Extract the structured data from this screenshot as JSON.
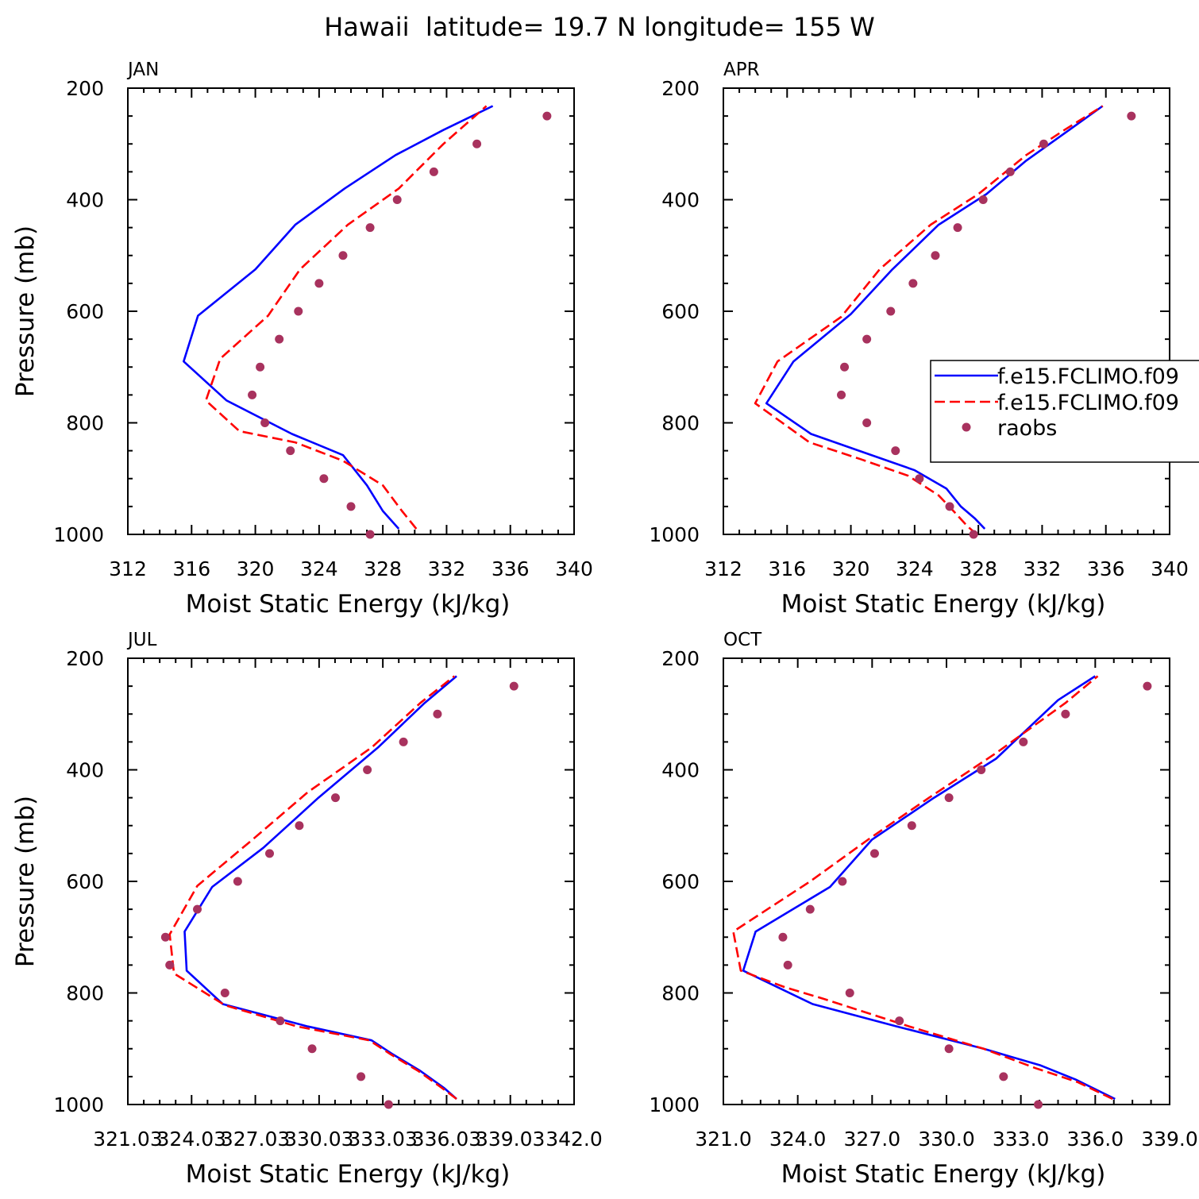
{
  "title": "Hawaii  latitude= 19.7 N longitude= 155 W",
  "legend": {
    "entries": [
      "f.e15.FCLIMO.f09",
      "f.e15.FCLIMO.f09",
      "raobs"
    ],
    "placement": "right, in APR panel"
  },
  "colors": {
    "series1": "#0000ff",
    "series2": "#ff0000",
    "obs": "#a8325e"
  },
  "chart_data": [
    {
      "type": "line",
      "panel_label": "JAN",
      "xlabel": "Moist Static Energy (kJ/kg)",
      "ylabel": "Pressure (mb)",
      "xlim": [
        312,
        340
      ],
      "ylim": [
        1000,
        200
      ],
      "xticks": [
        312,
        316,
        320,
        324,
        328,
        332,
        336,
        340
      ],
      "xtick_labels": [
        "312",
        "316",
        "320",
        "324",
        "328",
        "332",
        "336",
        "340"
      ],
      "yticks": [
        200,
        400,
        600,
        800,
        1000
      ],
      "ytick_labels": [
        "200",
        "400",
        "600",
        "800",
        "1000"
      ],
      "series": [
        {
          "name": "f.e15.FCLIMO.f09",
          "style": "solid",
          "x": [
            329.0,
            328.0,
            327.0,
            325.5,
            322.3,
            318.2,
            315.5,
            316.4,
            320.0,
            322.5,
            325.6,
            328.8,
            331.8,
            334.9
          ],
          "y": [
            990,
            958,
            912,
            858,
            820,
            760,
            690,
            608,
            525,
            445,
            380,
            320,
            275,
            232
          ]
        },
        {
          "name": "f.e15.FCLIMO.f09",
          "style": "dashed",
          "x": [
            330.1,
            329.2,
            328.0,
            325.5,
            322.5,
            319.0,
            316.9,
            317.8,
            320.8,
            322.8,
            325.8,
            329.0,
            331.8,
            334.5
          ],
          "y": [
            990,
            958,
            912,
            868,
            835,
            815,
            760,
            685,
            608,
            525,
            445,
            380,
            300,
            232
          ]
        },
        {
          "name": "raobs",
          "style": "markers",
          "x": [
            327.2,
            326.0,
            324.3,
            322.2,
            320.6,
            319.8,
            320.3,
            321.5,
            322.7,
            324.0,
            325.5,
            327.2,
            328.9,
            331.2,
            333.9,
            338.3
          ],
          "y": [
            1000,
            950,
            900,
            850,
            800,
            750,
            700,
            650,
            600,
            550,
            500,
            450,
            400,
            350,
            300,
            250
          ]
        }
      ]
    },
    {
      "type": "line",
      "panel_label": "APR",
      "xlabel": "Moist Static Energy (kJ/kg)",
      "ylabel": "Pressure (mb)",
      "xlim": [
        312,
        340
      ],
      "ylim": [
        1000,
        200
      ],
      "xticks": [
        312,
        316,
        320,
        324,
        328,
        332,
        336,
        340
      ],
      "xtick_labels": [
        "312",
        "316",
        "320",
        "324",
        "328",
        "332",
        "336",
        "340"
      ],
      "yticks": [
        200,
        400,
        600,
        800,
        1000
      ],
      "ytick_labels": [
        "200",
        "400",
        "600",
        "800",
        "1000"
      ],
      "series": [
        {
          "name": "f.e15.FCLIMO.f09",
          "style": "solid",
          "x": [
            328.4,
            327.8,
            326.9,
            326.0,
            324.0,
            321.5,
            317.5,
            314.7,
            316.4,
            320.0,
            322.6,
            325.5,
            328.5,
            331.0,
            333.7,
            335.8
          ],
          "y": [
            990,
            972,
            950,
            918,
            885,
            860,
            820,
            765,
            690,
            605,
            525,
            445,
            390,
            330,
            275,
            232
          ]
        },
        {
          "name": "f.e15.FCLIMO.f09",
          "style": "dashed",
          "x": [
            327.9,
            327.3,
            326.5,
            325.5,
            323.6,
            320.6,
            317.4,
            314.0,
            315.4,
            319.4,
            321.8,
            325.0,
            328.0,
            331.0,
            333.4,
            335.8
          ],
          "y": [
            1000,
            985,
            960,
            930,
            895,
            865,
            835,
            765,
            690,
            610,
            525,
            445,
            390,
            320,
            275,
            232
          ]
        },
        {
          "name": "raobs",
          "style": "markers",
          "x": [
            327.7,
            326.2,
            324.3,
            322.8,
            321.0,
            319.4,
            319.6,
            321.0,
            322.5,
            323.9,
            325.3,
            326.7,
            328.3,
            330.0,
            332.1,
            337.6
          ],
          "y": [
            1000,
            950,
            900,
            850,
            800,
            750,
            700,
            650,
            600,
            550,
            500,
            450,
            400,
            350,
            300,
            250
          ]
        }
      ]
    },
    {
      "type": "line",
      "panel_label": "JUL",
      "xlabel": "Moist Static Energy (kJ/kg)",
      "ylabel": "Pressure (mb)",
      "xlim": [
        321.03,
        342.03
      ],
      "ylim": [
        1000,
        200
      ],
      "xticks": [
        321.03,
        324.03,
        327.03,
        330.03,
        333.03,
        336.03,
        339.03,
        342.03
      ],
      "xtick_labels": [
        "321.03",
        "324.03",
        "327.03",
        "330.03",
        "333.03",
        "336.03",
        "339.03",
        "342.0"
      ],
      "yticks": [
        200,
        400,
        600,
        800,
        1000
      ],
      "ytick_labels": [
        "200",
        "400",
        "600",
        "800",
        "1000"
      ],
      "series": [
        {
          "name": "f.e15.FCLIMO.f09",
          "style": "solid",
          "x": [
            336.5,
            335.9,
            334.8,
            333.5,
            332.5,
            329.5,
            325.5,
            323.8,
            323.7,
            325.0,
            327.4,
            330.0,
            332.8,
            335.0,
            336.5
          ],
          "y": [
            990,
            970,
            940,
            910,
            885,
            860,
            820,
            760,
            690,
            610,
            540,
            450,
            360,
            280,
            232
          ]
        },
        {
          "name": "f.e15.FCLIMO.f09",
          "style": "dashed",
          "x": [
            336.5,
            335.8,
            334.7,
            333.4,
            332.4,
            329.0,
            325.6,
            323.2,
            323.0,
            324.3,
            326.9,
            329.5,
            332.5,
            334.8,
            336.4
          ],
          "y": [
            990,
            970,
            940,
            910,
            885,
            860,
            822,
            765,
            695,
            608,
            525,
            440,
            360,
            280,
            232
          ]
        },
        {
          "name": "raobs",
          "style": "markers",
          "x": [
            333.3,
            332.0,
            329.7,
            328.2,
            325.6,
            323.0,
            322.8,
            324.3,
            326.2,
            327.7,
            329.1,
            330.8,
            332.3,
            334.0,
            335.6,
            339.2
          ],
          "y": [
            1000,
            950,
            900,
            850,
            800,
            750,
            700,
            650,
            600,
            550,
            500,
            450,
            400,
            350,
            300,
            250
          ]
        }
      ]
    },
    {
      "type": "line",
      "panel_label": "OCT",
      "xlabel": "Moist Static Energy (kJ/kg)",
      "ylabel": "Pressure (mb)",
      "xlim": [
        321.0,
        339.0
      ],
      "ylim": [
        1000,
        200
      ],
      "xticks": [
        321.0,
        324.0,
        327.0,
        330.0,
        333.0,
        336.0,
        339.0
      ],
      "xtick_labels": [
        "321.0",
        "324.0",
        "327.0",
        "330.0",
        "333.0",
        "336.0",
        "339.0"
      ],
      "yticks": [
        200,
        400,
        600,
        800,
        1000
      ],
      "ytick_labels": [
        "200",
        "400",
        "600",
        "800",
        "1000"
      ],
      "series": [
        {
          "name": "f.e15.FCLIMO.f09",
          "style": "solid",
          "x": [
            336.8,
            335.2,
            333.8,
            331.5,
            328.0,
            324.6,
            321.8,
            322.3,
            325.3,
            327.0,
            329.5,
            332.0,
            334.5,
            336.0
          ],
          "y": [
            990,
            955,
            930,
            900,
            860,
            820,
            760,
            690,
            610,
            525,
            450,
            380,
            275,
            232
          ]
        },
        {
          "name": "f.e15.FCLIMO.f09",
          "style": "dashed",
          "x": [
            336.7,
            335.3,
            333.6,
            331.5,
            328.5,
            325.0,
            323.5,
            321.7,
            321.4,
            324.5,
            327.0,
            329.3,
            332.0,
            334.8,
            336.1
          ],
          "y": [
            990,
            960,
            935,
            900,
            860,
            810,
            790,
            760,
            690,
            600,
            520,
            450,
            370,
            280,
            232
          ]
        },
        {
          "name": "raobs",
          "style": "markers",
          "x": [
            333.7,
            332.3,
            330.1,
            328.1,
            326.1,
            323.6,
            323.4,
            324.5,
            325.8,
            327.1,
            328.6,
            330.1,
            331.4,
            333.1,
            334.8,
            338.1
          ],
          "y": [
            1000,
            950,
            900,
            850,
            800,
            750,
            700,
            650,
            600,
            550,
            500,
            450,
            400,
            350,
            300,
            250
          ]
        }
      ]
    }
  ]
}
